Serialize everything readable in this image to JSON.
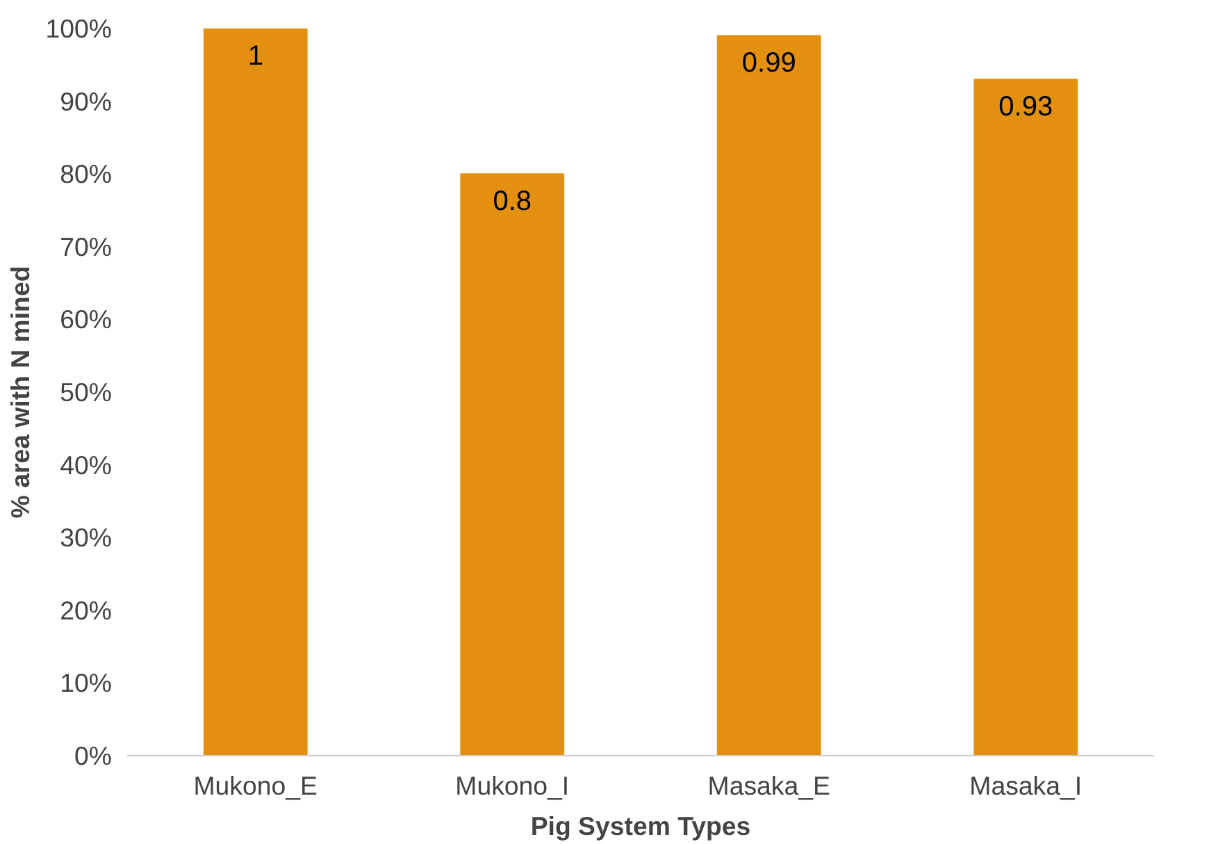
{
  "chart_data": {
    "type": "bar",
    "xlabel": "Pig System Types",
    "ylabel": "% area with N mined",
    "categories": [
      "Mukono_E",
      "Mukono_I",
      "Masaka_E",
      "Masaka_I"
    ],
    "values": [
      1,
      0.8,
      0.99,
      0.93
    ],
    "color": "#e38f10",
    "ylim": [
      0,
      1
    ],
    "yticks": [
      {
        "value": 0,
        "label": "0%"
      },
      {
        "value": 0.1,
        "label": "10%"
      },
      {
        "value": 0.2,
        "label": "20%"
      },
      {
        "value": 0.3,
        "label": "30%"
      },
      {
        "value": 0.4,
        "label": "40%"
      },
      {
        "value": 0.5,
        "label": "50%"
      },
      {
        "value": 0.6,
        "label": "60%"
      },
      {
        "value": 0.7,
        "label": "70%"
      },
      {
        "value": 0.8,
        "label": "80%"
      },
      {
        "value": 0.9,
        "label": "90%"
      },
      {
        "value": 1,
        "label": "100%"
      }
    ],
    "data_labels": true,
    "grid": false
  }
}
